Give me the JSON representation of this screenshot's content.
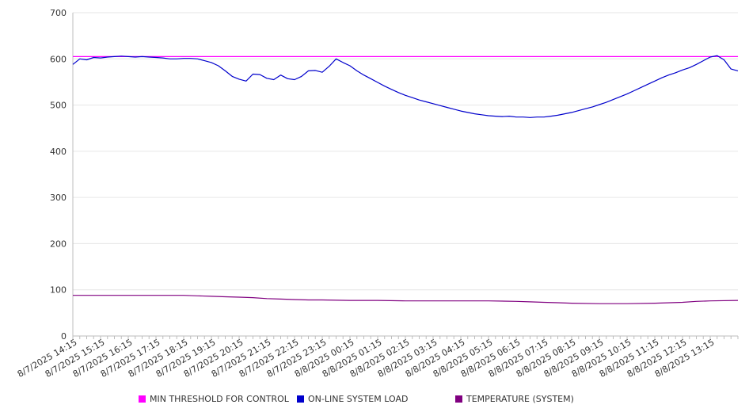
{
  "colors": {
    "threshold": "#ff00ff",
    "load": "#0000cc",
    "temperature": "#800080",
    "grid": "#e6e6e6",
    "axis": "#bdbdbd"
  },
  "chart_data": {
    "type": "line",
    "title": "",
    "xlabel": "",
    "ylabel": "",
    "ylim": [
      0,
      700
    ],
    "yticks": [
      0,
      100,
      200,
      300,
      400,
      500,
      600,
      700
    ],
    "grid": true,
    "legend_position": "bottom",
    "x_tick_labels": [
      "8/7/2025 14:15",
      "8/7/2025 15:15",
      "8/7/2025 16:15",
      "8/7/2025 17:15",
      "8/7/2025 18:15",
      "8/7/2025 19:15",
      "8/7/2025 20:15",
      "8/7/2025 21:15",
      "8/7/2025 22:15",
      "8/7/2025 23:15",
      "8/8/2025 00:15",
      "8/8/2025 01:15",
      "8/8/2025 02:15",
      "8/8/2025 03:15",
      "8/8/2025 04:15",
      "8/8/2025 05:15",
      "8/8/2025 06:15",
      "8/8/2025 07:15",
      "8/8/2025 08:15",
      "8/8/2025 09:15",
      "8/8/2025 10:15",
      "8/8/2025 11:15",
      "8/8/2025 12:15",
      "8/8/2025 13:15"
    ],
    "x_hours_span": 24,
    "series": [
      {
        "name": "MIN THRESHOLD FOR CONTROL",
        "key": "threshold",
        "points": [
          [
            0,
            605
          ],
          [
            24,
            605
          ]
        ]
      },
      {
        "name": "ON-LINE SYSTEM LOAD",
        "key": "load",
        "points": [
          [
            0,
            588
          ],
          [
            0.25,
            600
          ],
          [
            0.5,
            598
          ],
          [
            0.75,
            603
          ],
          [
            1,
            602
          ],
          [
            1.25,
            604
          ],
          [
            1.5,
            605
          ],
          [
            1.75,
            606
          ],
          [
            2,
            605
          ],
          [
            2.25,
            604
          ],
          [
            2.5,
            605
          ],
          [
            2.75,
            604
          ],
          [
            3,
            603
          ],
          [
            3.25,
            602
          ],
          [
            3.5,
            600
          ],
          [
            3.75,
            600
          ],
          [
            4,
            601
          ],
          [
            4.25,
            601
          ],
          [
            4.5,
            600
          ],
          [
            4.75,
            596
          ],
          [
            5,
            592
          ],
          [
            5.25,
            585
          ],
          [
            5.5,
            574
          ],
          [
            5.75,
            562
          ],
          [
            6,
            556
          ],
          [
            6.25,
            552
          ],
          [
            6.5,
            567
          ],
          [
            6.75,
            566
          ],
          [
            7,
            558
          ],
          [
            7.25,
            555
          ],
          [
            7.5,
            565
          ],
          [
            7.75,
            557
          ],
          [
            8,
            555
          ],
          [
            8.25,
            562
          ],
          [
            8.5,
            574
          ],
          [
            8.75,
            575
          ],
          [
            9,
            571
          ],
          [
            9.25,
            584
          ],
          [
            9.5,
            600
          ],
          [
            9.75,
            592
          ],
          [
            10,
            585
          ],
          [
            10.25,
            574
          ],
          [
            10.5,
            565
          ],
          [
            10.75,
            557
          ],
          [
            11,
            549
          ],
          [
            11.25,
            541
          ],
          [
            11.5,
            534
          ],
          [
            11.75,
            527
          ],
          [
            12,
            521
          ],
          [
            12.25,
            516
          ],
          [
            12.5,
            511
          ],
          [
            12.75,
            507
          ],
          [
            13,
            503
          ],
          [
            13.25,
            499
          ],
          [
            13.5,
            495
          ],
          [
            13.75,
            491
          ],
          [
            14,
            487
          ],
          [
            14.25,
            484
          ],
          [
            14.5,
            481
          ],
          [
            14.75,
            479
          ],
          [
            15,
            477
          ],
          [
            15.25,
            476
          ],
          [
            15.5,
            475
          ],
          [
            15.75,
            476
          ],
          [
            16,
            474
          ],
          [
            16.25,
            474
          ],
          [
            16.5,
            473
          ],
          [
            16.75,
            474
          ],
          [
            17,
            474
          ],
          [
            17.25,
            476
          ],
          [
            17.5,
            478
          ],
          [
            17.75,
            481
          ],
          [
            18,
            484
          ],
          [
            18.25,
            488
          ],
          [
            18.5,
            492
          ],
          [
            18.75,
            496
          ],
          [
            19,
            501
          ],
          [
            19.25,
            506
          ],
          [
            19.5,
            512
          ],
          [
            19.75,
            518
          ],
          [
            20,
            524
          ],
          [
            20.25,
            531
          ],
          [
            20.5,
            538
          ],
          [
            20.75,
            545
          ],
          [
            21,
            552
          ],
          [
            21.25,
            559
          ],
          [
            21.5,
            565
          ],
          [
            21.75,
            570
          ],
          [
            22,
            576
          ],
          [
            22.25,
            581
          ],
          [
            22.5,
            588
          ],
          [
            22.75,
            596
          ],
          [
            23,
            604
          ],
          [
            23.25,
            607
          ],
          [
            23.5,
            598
          ],
          [
            23.75,
            578
          ],
          [
            24,
            574
          ]
        ]
      },
      {
        "name": "TEMPERATURE (SYSTEM)",
        "key": "temperature",
        "points": [
          [
            0,
            88
          ],
          [
            1,
            88
          ],
          [
            2,
            88
          ],
          [
            3,
            88
          ],
          [
            4,
            88
          ],
          [
            4.5,
            87
          ],
          [
            5,
            86
          ],
          [
            5.5,
            85
          ],
          [
            6,
            84
          ],
          [
            6.5,
            83
          ],
          [
            7,
            81
          ],
          [
            7.5,
            80
          ],
          [
            8,
            79
          ],
          [
            8.5,
            78
          ],
          [
            9,
            78
          ],
          [
            10,
            77
          ],
          [
            11,
            77
          ],
          [
            12,
            76
          ],
          [
            13,
            76
          ],
          [
            14,
            76
          ],
          [
            15,
            76
          ],
          [
            16,
            75
          ],
          [
            16.5,
            74
          ],
          [
            17,
            73
          ],
          [
            17.5,
            72
          ],
          [
            18,
            71
          ],
          [
            19,
            70
          ],
          [
            20,
            70
          ],
          [
            21,
            71
          ],
          [
            22,
            73
          ],
          [
            22.5,
            75
          ],
          [
            23,
            76
          ],
          [
            24,
            77
          ]
        ]
      }
    ]
  },
  "legend": {
    "items": [
      {
        "label": "MIN THRESHOLD FOR CONTROL",
        "color": "#ff00ff"
      },
      {
        "label": "ON-LINE SYSTEM LOAD",
        "color": "#0000cc"
      },
      {
        "label": "TEMPERATURE (SYSTEM)",
        "color": "#800080"
      }
    ]
  }
}
